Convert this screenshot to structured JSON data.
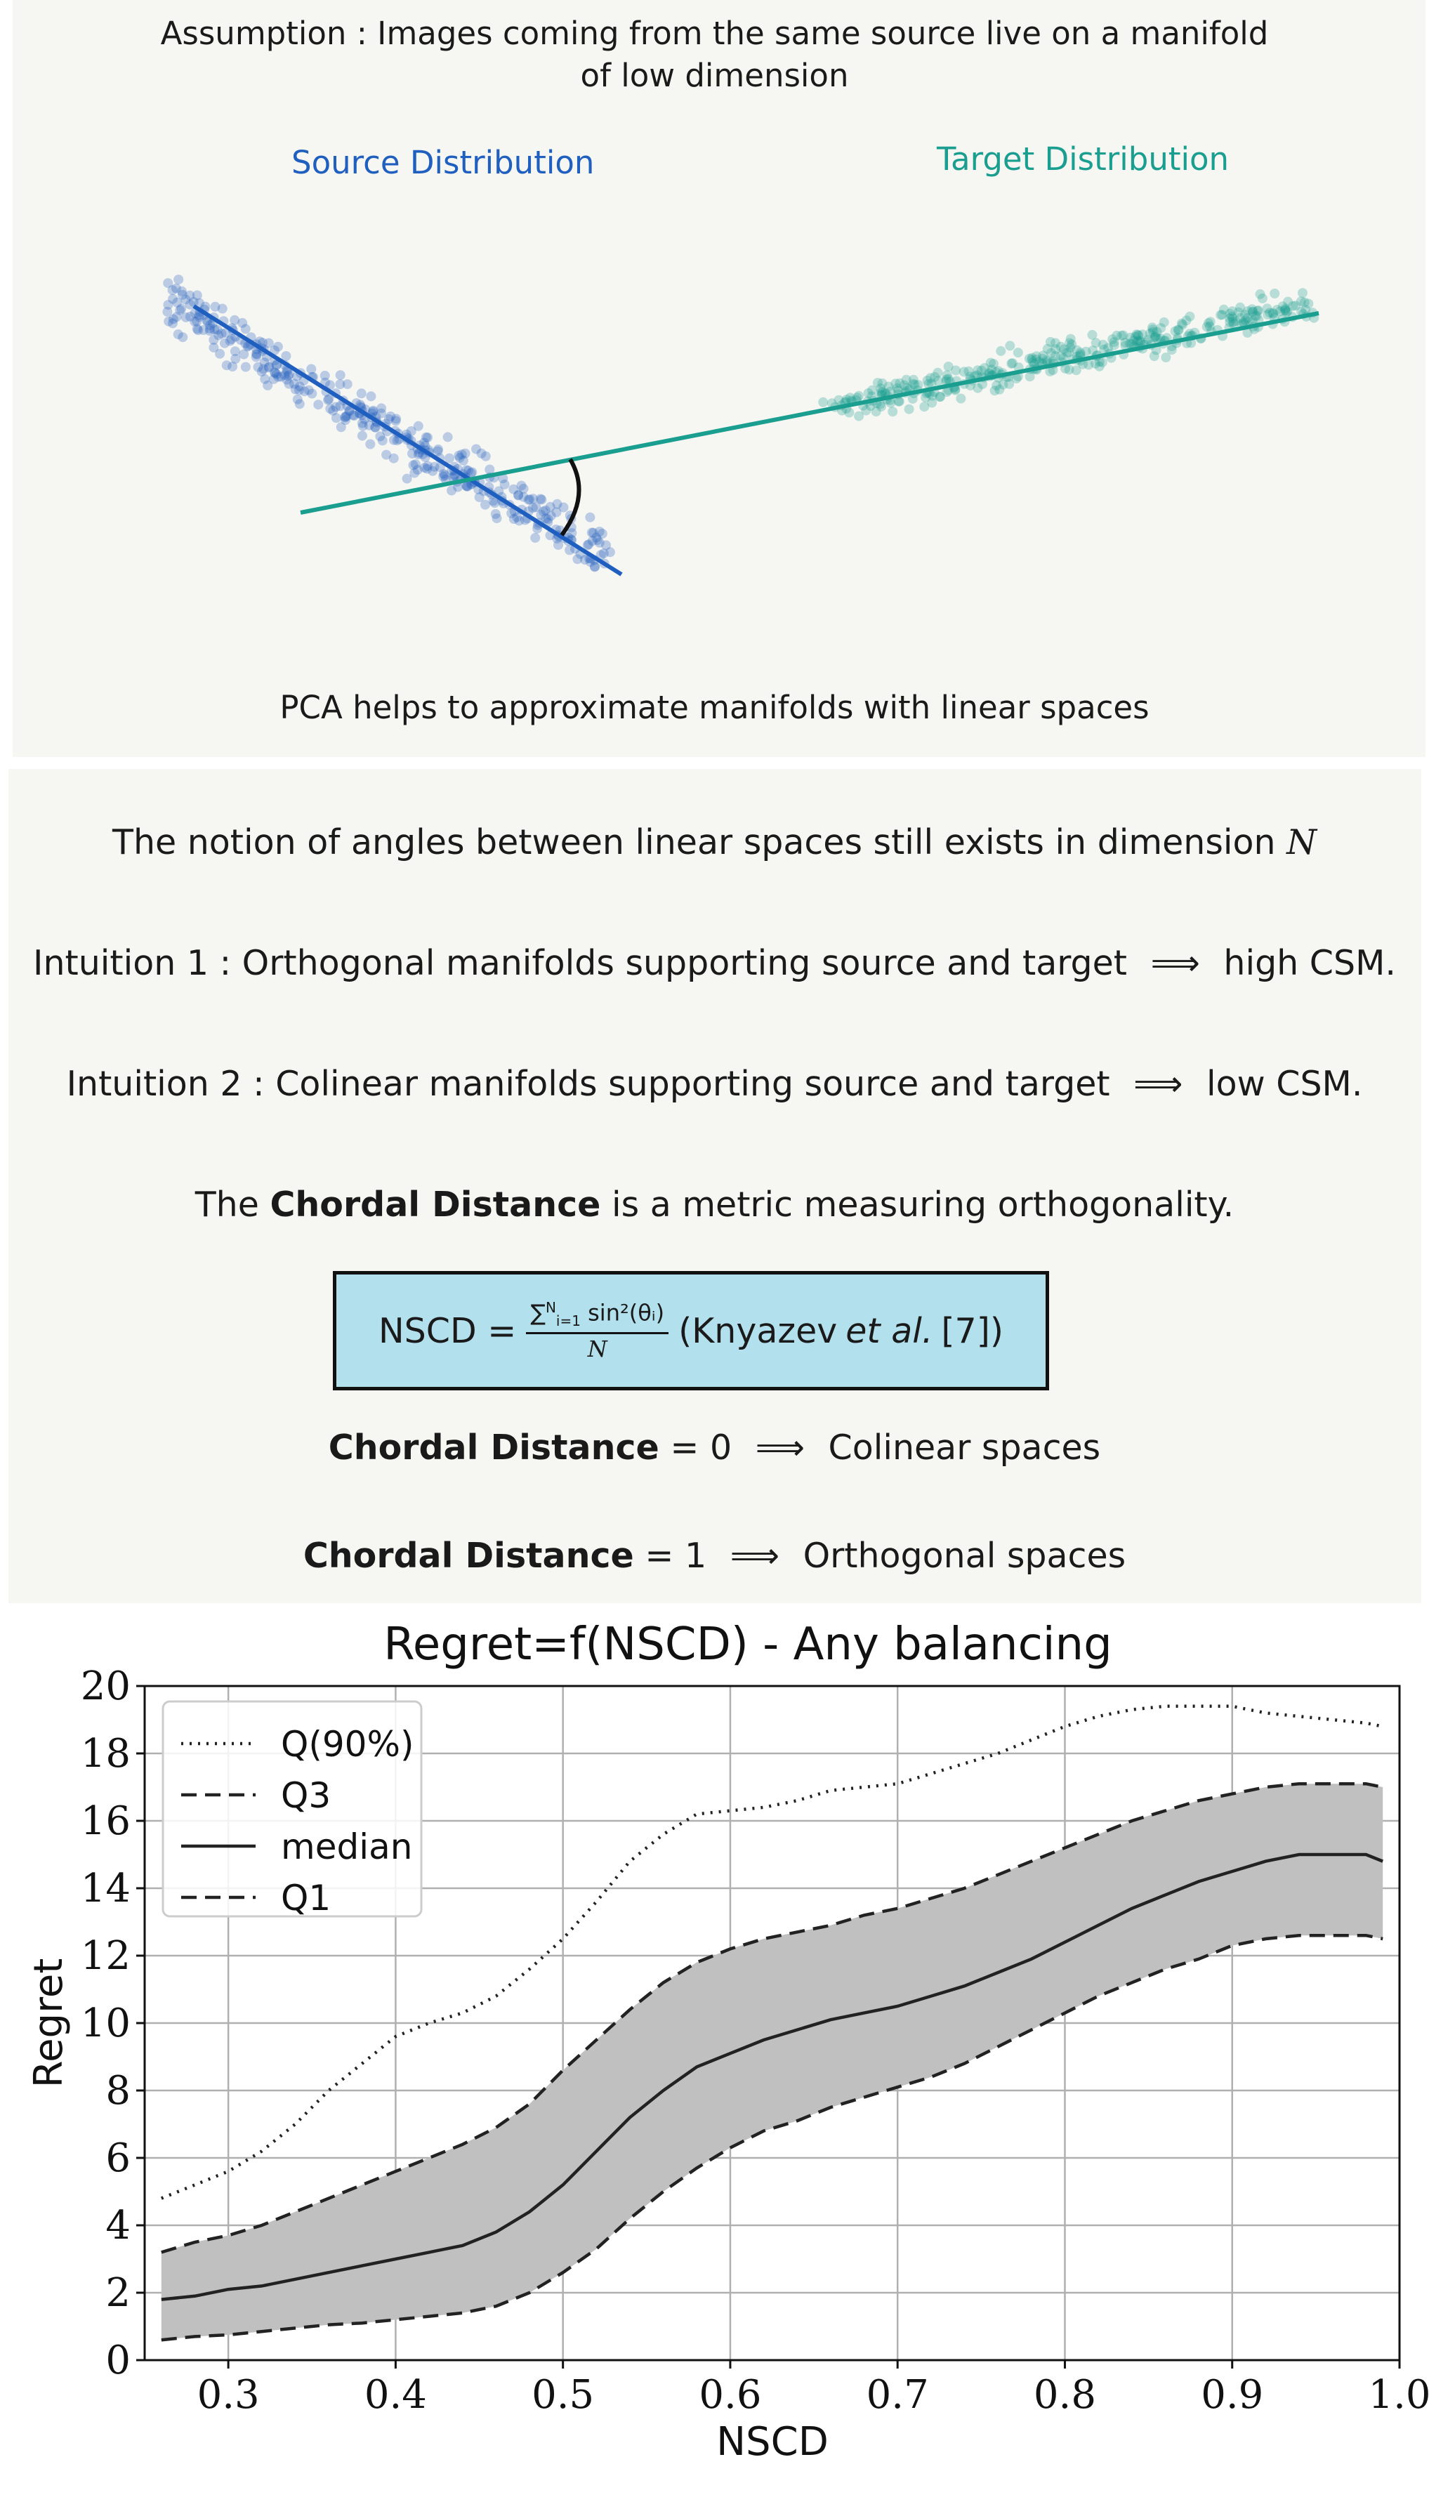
{
  "panel1": {
    "title": "Assumption : Images coming from the same source live on a manifold of low dimension",
    "source_label": "Source Distribution",
    "target_label": "Target Distribution",
    "caption": "PCA helps to approximate manifolds with linear spaces",
    "colors": {
      "source": "#1f5fbf",
      "target": "#1a9e8f"
    }
  },
  "panel2": {
    "line1_text": "The notion of angles between linear spaces still exists in dimension",
    "line1_var": "N",
    "intuition1_prefix": "Intuition 1 : Orthogonal manifolds supporting source and target",
    "intuition1_arrow": "⟹",
    "intuition1_result": "high CSM.",
    "intuition2_prefix": "Intuition 2 : Colinear manifolds supporting source and target",
    "intuition2_arrow": "⟹",
    "intuition2_result": "low CSM.",
    "chordal_pre": "The",
    "chordal_bold": "Chordal Distance",
    "chordal_post": "is a metric measuring orthogonality.",
    "formula": {
      "lhs": "NSCD =",
      "sum": "∑",
      "sum_sup": "N",
      "sum_sub": "i=1",
      "numerator_rest": "sin²(θᵢ)",
      "denominator": "N",
      "cite_pre": "(Knyazev",
      "cite_em": "et al.",
      "cite_post": "[7])"
    },
    "zero_bold": "Chordal Distance",
    "zero_eq": "= 0",
    "zero_arrow": "⟹",
    "zero_result": "Colinear spaces",
    "one_bold": "Chordal Distance",
    "one_eq": "= 1",
    "one_arrow": "⟹",
    "one_result": "Orthogonal spaces",
    "box_color": "#b2e0ec"
  },
  "chart_data": {
    "type": "line",
    "title": "Regret=f(NSCD) - Any balancing",
    "xlabel": "NSCD",
    "ylabel": "Regret",
    "xlim": [
      0.25,
      1.0
    ],
    "ylim": [
      0,
      20
    ],
    "xticks": [
      "0.3",
      "0.4",
      "0.5",
      "0.6",
      "0.7",
      "0.8",
      "0.9",
      "1.0"
    ],
    "yticks": [
      "0",
      "2",
      "4",
      "6",
      "8",
      "10",
      "12",
      "14",
      "16",
      "18",
      "20"
    ],
    "grid": true,
    "legend_position": "top-left",
    "x": [
      0.26,
      0.28,
      0.3,
      0.32,
      0.34,
      0.36,
      0.38,
      0.4,
      0.42,
      0.44,
      0.46,
      0.48,
      0.5,
      0.52,
      0.54,
      0.56,
      0.58,
      0.6,
      0.62,
      0.64,
      0.66,
      0.68,
      0.7,
      0.72,
      0.74,
      0.76,
      0.78,
      0.8,
      0.82,
      0.84,
      0.86,
      0.88,
      0.9,
      0.92,
      0.94,
      0.96,
      0.98,
      0.99
    ],
    "series": [
      {
        "name": "Q(90%)",
        "style": "dotted",
        "values": [
          4.8,
          5.2,
          5.6,
          6.2,
          7.0,
          8.0,
          8.8,
          9.6,
          10.0,
          10.3,
          10.8,
          11.6,
          12.5,
          13.6,
          14.8,
          15.6,
          16.2,
          16.3,
          16.4,
          16.6,
          16.9,
          17.0,
          17.1,
          17.4,
          17.7,
          18.0,
          18.4,
          18.8,
          19.1,
          19.3,
          19.4,
          19.4,
          19.4,
          19.2,
          19.1,
          19.0,
          18.9,
          18.8
        ]
      },
      {
        "name": "Q3",
        "style": "dashed",
        "values": [
          3.2,
          3.5,
          3.7,
          4.0,
          4.4,
          4.8,
          5.2,
          5.6,
          6.0,
          6.4,
          6.9,
          7.6,
          8.6,
          9.5,
          10.4,
          11.2,
          11.8,
          12.2,
          12.5,
          12.7,
          12.9,
          13.2,
          13.4,
          13.7,
          14.0,
          14.4,
          14.8,
          15.2,
          15.6,
          16.0,
          16.3,
          16.6,
          16.8,
          17.0,
          17.1,
          17.1,
          17.1,
          17.0
        ]
      },
      {
        "name": "median",
        "style": "solid",
        "values": [
          1.8,
          1.9,
          2.1,
          2.2,
          2.4,
          2.6,
          2.8,
          3.0,
          3.2,
          3.4,
          3.8,
          4.4,
          5.2,
          6.2,
          7.2,
          8.0,
          8.7,
          9.1,
          9.5,
          9.8,
          10.1,
          10.3,
          10.5,
          10.8,
          11.1,
          11.5,
          11.9,
          12.4,
          12.9,
          13.4,
          13.8,
          14.2,
          14.5,
          14.8,
          15.0,
          15.0,
          15.0,
          14.8
        ]
      },
      {
        "name": "Q1",
        "style": "dashed",
        "values": [
          0.6,
          0.7,
          0.75,
          0.85,
          0.95,
          1.05,
          1.1,
          1.2,
          1.3,
          1.4,
          1.6,
          2.0,
          2.6,
          3.3,
          4.2,
          5.0,
          5.7,
          6.3,
          6.8,
          7.1,
          7.5,
          7.8,
          8.1,
          8.4,
          8.8,
          9.3,
          9.8,
          10.3,
          10.8,
          11.2,
          11.6,
          11.9,
          12.3,
          12.5,
          12.6,
          12.6,
          12.6,
          12.5
        ]
      }
    ],
    "band": {
      "between": [
        "Q1",
        "Q3"
      ],
      "color": "#c0c0c0"
    }
  }
}
